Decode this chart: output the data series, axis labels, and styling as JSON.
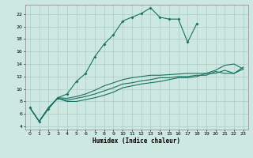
{
  "xlabel": "Humidex (Indice chaleur)",
  "bg_color": "#cce8e0",
  "grid_color": "#aacccc",
  "line_color": "#1a7060",
  "xlim": [
    -0.5,
    23.5
  ],
  "ylim": [
    3.5,
    23.5
  ],
  "yticks": [
    4,
    6,
    8,
    10,
    12,
    14,
    16,
    18,
    20,
    22
  ],
  "xticks": [
    0,
    1,
    2,
    3,
    4,
    5,
    6,
    7,
    8,
    9,
    10,
    11,
    12,
    13,
    14,
    15,
    16,
    17,
    18,
    19,
    20,
    21,
    22,
    23
  ],
  "curve_peak_x": [
    0,
    1,
    2,
    3,
    4,
    5,
    6,
    7,
    8,
    9,
    10,
    11,
    12,
    13,
    14,
    15,
    16,
    17,
    18
  ],
  "curve_peak_y": [
    7.0,
    4.8,
    6.8,
    8.6,
    9.2,
    11.2,
    12.5,
    15.2,
    17.2,
    18.7,
    20.9,
    21.5,
    22.1,
    23.0,
    21.5,
    21.2,
    21.2,
    17.5,
    20.5
  ],
  "curve_a_x": [
    0,
    1,
    2,
    3,
    4,
    5,
    6,
    7,
    8,
    9,
    10,
    11,
    12,
    13,
    14,
    15,
    16,
    17,
    18,
    19,
    20,
    21,
    22,
    23
  ],
  "curve_a_y": [
    7.0,
    4.8,
    7.0,
    8.6,
    8.5,
    8.8,
    9.2,
    9.8,
    10.5,
    11.0,
    11.5,
    11.8,
    12.0,
    12.2,
    12.2,
    12.3,
    12.4,
    12.5,
    12.5,
    12.5,
    12.5,
    13.0,
    12.5,
    13.5
  ],
  "curve_b_x": [
    0,
    1,
    2,
    3,
    4,
    5,
    6,
    7,
    8,
    9,
    10,
    11,
    12,
    13,
    14,
    15,
    16,
    17,
    18,
    19,
    20,
    21,
    22,
    23
  ],
  "curve_b_y": [
    7.0,
    4.8,
    7.0,
    8.5,
    8.2,
    8.5,
    8.8,
    9.2,
    9.7,
    10.2,
    10.8,
    11.0,
    11.3,
    11.5,
    11.8,
    11.8,
    12.0,
    12.0,
    12.2,
    12.2,
    12.8,
    12.5,
    12.5,
    13.2
  ],
  "curve_c_x": [
    0,
    1,
    2,
    3,
    4,
    5,
    6,
    7,
    8,
    9,
    10,
    11,
    12,
    13,
    14,
    15,
    16,
    17,
    18,
    19,
    20,
    21,
    22,
    23
  ],
  "curve_c_y": [
    7.0,
    4.8,
    7.0,
    8.5,
    8.0,
    8.0,
    8.3,
    8.6,
    9.0,
    9.5,
    10.2,
    10.5,
    10.8,
    11.0,
    11.2,
    11.5,
    11.8,
    11.8,
    12.0,
    12.5,
    13.0,
    13.8,
    14.0,
    13.2
  ]
}
